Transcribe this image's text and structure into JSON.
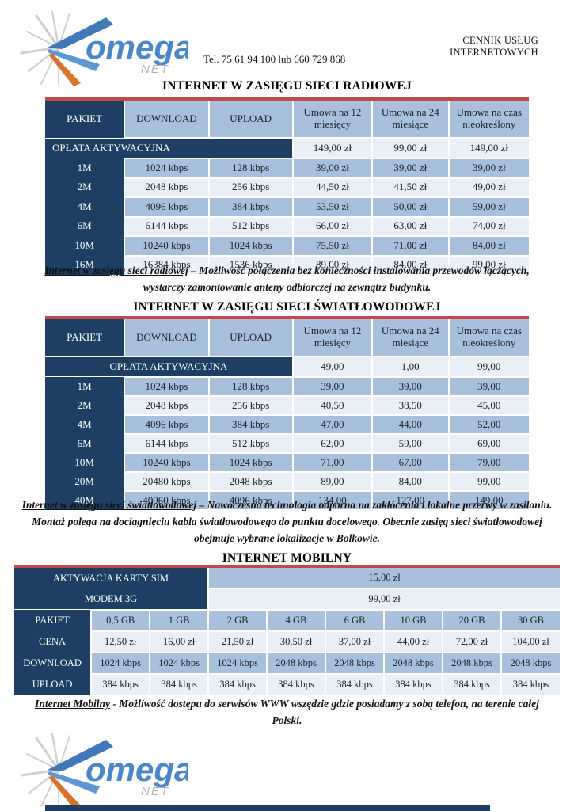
{
  "brand": {
    "name": "omega",
    "sub": "NET"
  },
  "header": {
    "doc_title": "CENNIK USŁUG INTERNETOWYCH",
    "phone": "Tel. 75 61 94 100 lub 660 729 868"
  },
  "colors": {
    "table_dark": "#1E3F63",
    "stripe_medium": "#A9C0DD",
    "stripe_light": "#E9EFF6",
    "accent_red": "#BE4B48",
    "logo_blue": "#4A87C9",
    "logo_orange": "#D9732A"
  },
  "radio": {
    "title": "INTERNET W ZASIĘGU SIECI RADIOWEJ",
    "headers": [
      "PAKIET",
      "DOWNLOAD",
      "UPLOAD",
      "Umowa na 12 miesięcy",
      "Umowa na 24 miesiące",
      "Umowa na czas nieokreślony"
    ],
    "activation_label": "OPŁATA AKTYWACYJNA",
    "activation_values": [
      "149,00 zł",
      "99,00 zł",
      "149,00 zł"
    ],
    "rows": [
      [
        "1M",
        "1024 kbps",
        "128 kbps",
        "39,00 zł",
        "39,00 zł",
        "39,00 zł"
      ],
      [
        "2M",
        "2048 kbps",
        "256 kbps",
        "44,50 zł",
        "41,50 zł",
        "49,00 zł"
      ],
      [
        "4M",
        "4096 kbps",
        "384 kbps",
        "53,50 zł",
        "50,00 zł",
        "59,00 zł"
      ],
      [
        "6M",
        "6144 kbps",
        "512 kbps",
        "66,00 zł",
        "63,00 zł",
        "74,00 zł"
      ],
      [
        "10M",
        "10240 kbps",
        "1024 kbps",
        "75,50 zł",
        "71,00 zł",
        "84,00 zł"
      ],
      [
        "16M",
        "16384 kbps",
        "1536 kbps",
        "89,00 zł",
        "84,00 zł",
        "99,00 zł"
      ]
    ],
    "note_lead": "Internet w zasięgu sieci radiowej",
    "note_rest": " – Możliwość połączenia bez konieczności instalowania przewodów łączących, wystarczy zamontowanie anteny odbiorczej na zewnątrz budynku."
  },
  "fiber": {
    "title": "INTERNET W ZASIĘGU SIECI ŚWIATŁOWODOWEJ",
    "headers": [
      "PAKIET",
      "DOWNLOAD",
      "UPLOAD",
      "Umowa na 12 miesięcy",
      "Umowa na 24 miesiące",
      "Umowa na czas nieokreślony"
    ],
    "activation_label": "OPŁATA AKTYWACYJNA",
    "activation_values": [
      "49,00",
      "1,00",
      "99,00"
    ],
    "rows": [
      [
        "1M",
        "1024 kbps",
        "128 kbps",
        "39,00",
        "39,00",
        "39,00"
      ],
      [
        "2M",
        "2048 kbps",
        "256 kbps",
        "40,50",
        "38,50",
        "45,00"
      ],
      [
        "4M",
        "4096 kbps",
        "384 kbps",
        "47,00",
        "44,00",
        "52,00"
      ],
      [
        "6M",
        "6144 kbps",
        "512 kbps",
        "62,00",
        "59,00",
        "69,00"
      ],
      [
        "10M",
        "10240 kbps",
        "1024 kbps",
        "71,00",
        "67,00",
        "79,00"
      ],
      [
        "20M",
        "20480 kbps",
        "2048 kbps",
        "89,00",
        "84,00",
        "99,00"
      ],
      [
        "40M",
        "40960 kbps",
        "4096 kbps",
        "134,00",
        "127,00",
        "149,00"
      ]
    ],
    "note_lead": "Internet w zasięgu sieci światłowodowej",
    "note_rest": " – Nowoczesna technologia odporna na zakłócenia i lokalne przerwy w zasilaniu. Montaż polega na dociągnięciu kabla światłowodowego do punktu docelowego. Obecnie zasięg sieci światłowodowej obejmuje wybrane lokalizacje w Bolkowie."
  },
  "mobile": {
    "title": "INTERNET MOBILNY",
    "sim_label": "AKTYWACJA KARTY SIM",
    "sim_value": "15,00 zł",
    "modem_label": "MODEM 3G",
    "modem_value": "99,00 zł",
    "row_labels": [
      "PAKIET",
      "CENA",
      "DOWNLOAD",
      "UPLOAD"
    ],
    "packages": [
      "0,5 GB",
      "1 GB",
      "2 GB",
      "4 GB",
      "6 GB",
      "10 GB",
      "20 GB",
      "30 GB"
    ],
    "cena": [
      "12,50 zł",
      "16,00 zł",
      "21,50 zł",
      "30,50 zł",
      "37,00 zł",
      "44,00 zł",
      "72,00 zł",
      "104,00 zł"
    ],
    "download": [
      "1024 kbps",
      "1024 kbps",
      "1024 kbps",
      "2048 kbps",
      "2048 kbps",
      "2048 kbps",
      "2048 kbps",
      "2048 kbps"
    ],
    "upload": [
      "384 kbps",
      "384 kbps",
      "384 kbps",
      "384 kbps",
      "384 kbps",
      "384 kbps",
      "384 kbps",
      "384 kbps"
    ],
    "note_lead": "Internet Mobilny",
    "note_rest": " - Możliwość dostępu do serwisów WWW wszędzie gdzie posiadamy z sobą telefon, na terenie całej Polski."
  }
}
